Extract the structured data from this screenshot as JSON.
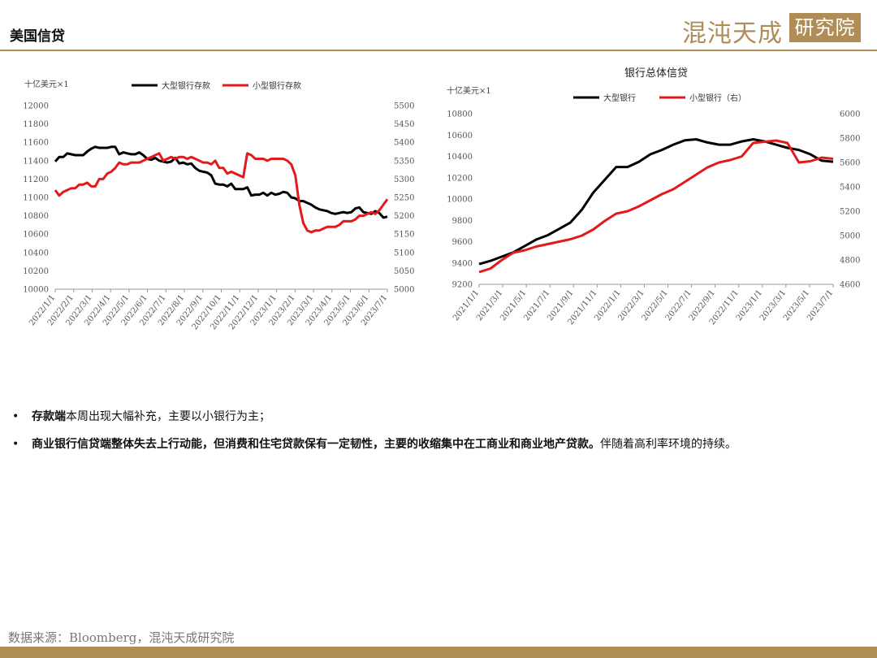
{
  "header": {
    "title": "美国信贷",
    "logo_text": "混沌天成",
    "logo_box_text": "研究院"
  },
  "colors": {
    "accent": "#b08d57",
    "series_black": "#000000",
    "series_red": "#e31a1c"
  },
  "bullets": [
    {
      "bold": "存款端",
      "normal": "本周出现大幅补充，主要以小银行为主；"
    },
    {
      "bold": "商业银行信贷端整体失去上行动能，但消费和住宅贷款保有一定韧性，主要的收缩集中在工商业和商业地产贷款。",
      "normal": "伴随着高利率环境的持续。"
    }
  ],
  "source": "数据来源：Bloomberg，混沌天成研究院",
  "chart_data": [
    {
      "type": "line",
      "title": "",
      "unit_label": "十亿美元×1",
      "x": [
        "2022/1/1",
        "2022/1/8",
        "2022/1/15",
        "2022/1/22",
        "2022/1/29",
        "2022/2/5",
        "2022/2/12",
        "2022/2/19",
        "2022/2/26",
        "2022/3/5",
        "2022/3/12",
        "2022/3/19",
        "2022/3/26",
        "2022/4/2",
        "2022/4/9",
        "2022/4/16",
        "2022/4/23",
        "2022/4/30",
        "2022/5/7",
        "2022/5/14",
        "2022/5/21",
        "2022/5/28",
        "2022/6/4",
        "2022/6/11",
        "2022/6/18",
        "2022/6/25",
        "2022/7/2",
        "2022/7/9",
        "2022/7/16",
        "2022/7/23",
        "2022/7/30",
        "2022/8/6",
        "2022/8/13",
        "2022/8/20",
        "2022/8/27",
        "2022/9/3",
        "2022/9/10",
        "2022/9/17",
        "2022/9/24",
        "2022/10/1",
        "2022/10/8",
        "2022/10/15",
        "2022/10/22",
        "2022/10/29",
        "2022/11/5",
        "2022/11/12",
        "2022/11/19",
        "2022/11/26",
        "2022/12/3",
        "2022/12/10",
        "2022/12/17",
        "2022/12/24",
        "2022/12/31",
        "2023/1/7",
        "2023/1/14",
        "2023/1/21",
        "2023/1/28",
        "2023/2/4",
        "2023/2/11",
        "2023/2/18",
        "2023/2/25",
        "2023/3/4",
        "2023/3/11",
        "2023/3/18",
        "2023/3/25",
        "2023/4/1",
        "2023/4/8",
        "2023/4/15",
        "2023/4/22",
        "2023/4/29",
        "2023/5/6",
        "2023/5/13",
        "2023/5/20",
        "2023/5/27",
        "2023/6/3",
        "2023/6/10",
        "2023/6/17",
        "2023/6/24",
        "2023/7/1",
        "2023/7/8",
        "2023/7/15",
        "2023/7/22",
        "2023/7/29",
        "2023/8/5"
      ],
      "x_tick_labels": [
        "2022/1/1",
        "2022/2/1",
        "2022/3/1",
        "2022/4/1",
        "2022/5/1",
        "2022/6/1",
        "2022/7/1",
        "2022/8/1",
        "2022/9/1",
        "2022/10/1",
        "2022/11/1",
        "2022/12/1",
        "2023/1/1",
        "2023/2/1",
        "2023/3/1",
        "2023/4/1",
        "2023/5/1",
        "2023/6/1",
        "2023/7/1"
      ],
      "y_left_range": [
        10000,
        12000
      ],
      "y_left_ticks": [
        "12000",
        "11800",
        "11600",
        "11400",
        "11200",
        "11000",
        "10800",
        "10600",
        "10400",
        "10200",
        "10000"
      ],
      "y_right_range": [
        5000,
        5500
      ],
      "y_right_ticks": [
        "5500",
        "5450",
        "5400",
        "5350",
        "5300",
        "5250",
        "5200",
        "5150",
        "5100",
        "5050",
        "5000"
      ],
      "grid": false,
      "legend_position": "top",
      "series": [
        {
          "name": "大型银行存款",
          "axis": "left",
          "color": "#000000",
          "values": [
            11390,
            11440,
            11440,
            11480,
            11470,
            11460,
            11460,
            11460,
            11500,
            11530,
            11550,
            11540,
            11540,
            11540,
            11550,
            11550,
            11470,
            11490,
            11480,
            11470,
            11470,
            11490,
            11460,
            11420,
            11410,
            11430,
            11400,
            11390,
            11380,
            11390,
            11430,
            11370,
            11380,
            11360,
            11370,
            11320,
            11290,
            11280,
            11270,
            11240,
            11150,
            11140,
            11140,
            11120,
            11150,
            11090,
            11090,
            11090,
            11110,
            11020,
            11030,
            11030,
            11050,
            11020,
            11050,
            11030,
            11040,
            11060,
            11050,
            11000,
            10990,
            10960,
            10960,
            10940,
            10920,
            10890,
            10870,
            10860,
            10850,
            10830,
            10820,
            10830,
            10840,
            10830,
            10840,
            10880,
            10890,
            10840,
            10830,
            10820,
            10850,
            10830,
            10780,
            10790
          ]
        },
        {
          "name": "小型银行存款",
          "axis": "right",
          "color": "#e31a1c",
          "values": [
            5270,
            5255,
            5265,
            5270,
            5275,
            5275,
            5285,
            5285,
            5290,
            5280,
            5280,
            5300,
            5300,
            5315,
            5320,
            5330,
            5345,
            5340,
            5340,
            5345,
            5345,
            5345,
            5350,
            5355,
            5360,
            5365,
            5370,
            5350,
            5355,
            5360,
            5355,
            5360,
            5360,
            5355,
            5360,
            5355,
            5350,
            5345,
            5345,
            5340,
            5350,
            5330,
            5330,
            5315,
            5320,
            5315,
            5310,
            5305,
            5370,
            5365,
            5355,
            5355,
            5355,
            5350,
            5355,
            5355,
            5355,
            5355,
            5350,
            5340,
            5310,
            5230,
            5180,
            5160,
            5155,
            5160,
            5160,
            5165,
            5170,
            5170,
            5170,
            5175,
            5185,
            5185,
            5185,
            5190,
            5200,
            5200,
            5205,
            5210,
            5205,
            5215,
            5230,
            5245
          ]
        }
      ]
    },
    {
      "type": "line",
      "title": "银行总体信贷",
      "unit_label": "十亿美元×1",
      "x": [
        "2021/1",
        "2021/2",
        "2021/3",
        "2021/4",
        "2021/5",
        "2021/6",
        "2021/7",
        "2021/8",
        "2021/9",
        "2021/10",
        "2021/11",
        "2021/12",
        "2022/1",
        "2022/2",
        "2022/3",
        "2022/4",
        "2022/5",
        "2022/6",
        "2022/7",
        "2022/8",
        "2022/9",
        "2022/10",
        "2022/11",
        "2022/12",
        "2023/1",
        "2023/2",
        "2023/3",
        "2023/4",
        "2023/5",
        "2023/6",
        "2023/7",
        "2023/8"
      ],
      "x_tick_labels": [
        "2021/1/1",
        "2021/3/1",
        "2021/5/1",
        "2021/7/1",
        "2021/9/1",
        "2021/11/1",
        "2022/1/1",
        "2022/3/1",
        "2022/5/1",
        "2022/7/1",
        "2022/9/1",
        "2022/11/1",
        "2023/1/1",
        "2023/3/1",
        "2023/5/1",
        "2023/7/1"
      ],
      "y_left_range": [
        9200,
        10800
      ],
      "y_left_ticks": [
        "10800",
        "10600",
        "10400",
        "10200",
        "10000",
        "9800",
        "9600",
        "9400",
        "9200"
      ],
      "y_right_range": [
        4600,
        6000
      ],
      "y_right_ticks": [
        "6000",
        "5800",
        "5600",
        "5400",
        "5200",
        "5000",
        "4800",
        "4600"
      ],
      "grid": false,
      "legend_position": "top",
      "series": [
        {
          "name": "大型银行",
          "axis": "left",
          "color": "#000000",
          "values": [
            9390,
            9420,
            9460,
            9500,
            9560,
            9620,
            9660,
            9720,
            9780,
            9900,
            10060,
            10180,
            10300,
            10300,
            10350,
            10420,
            10460,
            10510,
            10550,
            10560,
            10530,
            10510,
            10510,
            10540,
            10560,
            10540,
            10510,
            10480,
            10460,
            10420,
            10360,
            10350
          ]
        },
        {
          "name": "小型银行（右）",
          "axis": "right",
          "color": "#e31a1c",
          "values": [
            4700,
            4730,
            4800,
            4860,
            4880,
            4910,
            4930,
            4950,
            4970,
            5000,
            5050,
            5120,
            5180,
            5200,
            5240,
            5290,
            5340,
            5380,
            5440,
            5500,
            5560,
            5600,
            5620,
            5650,
            5760,
            5770,
            5780,
            5760,
            5600,
            5610,
            5640,
            5630
          ]
        }
      ]
    }
  ]
}
